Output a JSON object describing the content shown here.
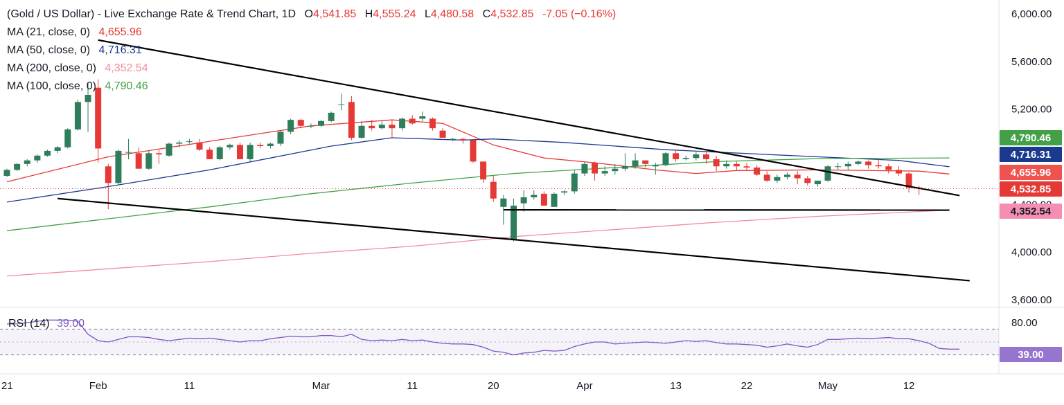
{
  "header": {
    "symbol": "(Gold / US Dollar) - Live Exchange Rate & Trend Chart, 1D",
    "ohlc": [
      {
        "k": "O",
        "v": "4,541.85"
      },
      {
        "k": "H",
        "v": "4,555.24"
      },
      {
        "k": "L",
        "v": "4,480.58"
      },
      {
        "k": "C",
        "v": "4,532.85"
      }
    ],
    "change": "-7.05 (−0.16%)"
  },
  "indicators": [
    {
      "label": "MA (21, close, 0)",
      "value": "4,655.96",
      "color": "#e53935"
    },
    {
      "label": "MA (50, close, 0)",
      "value": "4,716.31",
      "color": "#1a3a8f"
    },
    {
      "label": "MA (200, close, 0)",
      "value": "4,352.54",
      "color": "#f08c9c"
    },
    {
      "label": "MA (100, close, 0)",
      "value": "4,790.46",
      "color": "#43a047"
    }
  ],
  "rsi_label": {
    "name": "RSI (14)",
    "value": "39.00",
    "color": "#7e57c2"
  },
  "price_axis": {
    "ticks": [
      {
        "v": 6000,
        "label": "6,000.00"
      },
      {
        "v": 5600,
        "label": "5,600.00"
      },
      {
        "v": 5200,
        "label": "5,200.00"
      },
      {
        "v": 4000,
        "label": "4,000.00"
      },
      {
        "v": 3600,
        "label": "3,600.00"
      }
    ],
    "partial_label": {
      "v": 4400,
      "label": "4,400.00"
    },
    "tags": [
      {
        "v": 4790.46,
        "label": "4,790.46",
        "bg": "#43a047",
        "fg": "#ffffff"
      },
      {
        "v": 4716.31,
        "label": "4,716.31",
        "bg": "#1a3a8f",
        "fg": "#ffffff"
      },
      {
        "v": 4655.96,
        "label": "4,655.96",
        "bg": "#ef5350",
        "fg": "#ffffff"
      },
      {
        "v": 4532.85,
        "label": "4,532.85",
        "bg": "#e53935",
        "fg": "#ffffff"
      },
      {
        "v": 4352.54,
        "label": "4,352.54",
        "bg": "#f48fb1",
        "fg": "#131722"
      }
    ]
  },
  "rsi_axis": {
    "ticks": [
      {
        "v": 80,
        "label": "80.00"
      }
    ],
    "bands": [
      70,
      30
    ],
    "tag": {
      "v": 39.0,
      "label": "39.00",
      "bg": "#9575cd",
      "fg": "#ffffff"
    }
  },
  "x_axis": {
    "labels": [
      {
        "i": -1,
        "label": "21"
      },
      {
        "i": 9,
        "label": "Feb"
      },
      {
        "i": 18,
        "label": "11"
      },
      {
        "i": 31,
        "label": "Mar"
      },
      {
        "i": 40,
        "label": "11"
      },
      {
        "i": 48,
        "label": "20"
      },
      {
        "i": 57,
        "label": "Apr"
      },
      {
        "i": 66,
        "label": "13"
      },
      {
        "i": 73,
        "label": "22"
      },
      {
        "i": 81,
        "label": "May"
      },
      {
        "i": 89,
        "label": "12"
      }
    ]
  },
  "chart_data": {
    "type": "candlestick",
    "title": "(Gold / US Dollar) - Live Exchange Rate & Trend Chart",
    "timeframe": "1D",
    "ylim": [
      3540,
      6080
    ],
    "candles": [
      [
        4640,
        4700,
        4630,
        4690
      ],
      [
        4690,
        4750,
        4680,
        4740
      ],
      [
        4740,
        4780,
        4720,
        4770
      ],
      [
        4770,
        4820,
        4750,
        4810
      ],
      [
        4810,
        4860,
        4800,
        4850
      ],
      [
        4850,
        4890,
        4830,
        4880
      ],
      [
        4880,
        5040,
        4870,
        5030
      ],
      [
        5030,
        5280,
        5020,
        5260
      ],
      [
        5260,
        5420,
        5010,
        5320
      ],
      [
        5380,
        5450,
        4750,
        4870
      ],
      [
        4720,
        4740,
        4360,
        4580
      ],
      [
        4580,
        4860,
        4560,
        4850
      ],
      [
        4840,
        4950,
        4780,
        4840
      ],
      [
        4830,
        4880,
        4700,
        4700
      ],
      [
        4700,
        4850,
        4690,
        4830
      ],
      [
        4830,
        4860,
        4740,
        4820
      ],
      [
        4810,
        4920,
        4800,
        4910
      ],
      [
        4910,
        4940,
        4880,
        4920
      ],
      [
        4930,
        4950,
        4910,
        4930
      ],
      [
        4920,
        4950,
        4850,
        4860
      ],
      [
        4860,
        4880,
        4780,
        4780
      ],
      [
        4780,
        4890,
        4770,
        4880
      ],
      [
        4880,
        4910,
        4860,
        4900
      ],
      [
        4900,
        4920,
        4780,
        4780
      ],
      [
        4780,
        4920,
        4760,
        4900
      ],
      [
        4900,
        4920,
        4870,
        4890
      ],
      [
        4890,
        4920,
        4870,
        4910
      ],
      [
        4910,
        5020,
        4890,
        5010
      ],
      [
        5010,
        5120,
        4990,
        5110
      ],
      [
        5110,
        5120,
        5040,
        5060
      ],
      [
        5060,
        5080,
        5040,
        5060
      ],
      [
        5060,
        5110,
        5050,
        5100
      ],
      [
        5100,
        5180,
        5090,
        5170
      ],
      [
        5240,
        5330,
        5190,
        5240
      ],
      [
        5260,
        5310,
        4940,
        4960
      ],
      [
        4960,
        5100,
        4950,
        5060
      ],
      [
        5060,
        5110,
        5020,
        5040
      ],
      [
        5040,
        5100,
        5030,
        5070
      ],
      [
        5070,
        5110,
        4960,
        5040
      ],
      [
        5040,
        5130,
        5020,
        5120
      ],
      [
        5120,
        5150,
        5070,
        5080
      ],
      [
        5120,
        5180,
        5100,
        5140
      ],
      [
        5120,
        5130,
        5020,
        5040
      ],
      [
        5020,
        5040,
        4960,
        4960
      ],
      [
        4950,
        4960,
        4930,
        4950
      ],
      [
        4950,
        4960,
        4910,
        4940
      ],
      [
        4940,
        4950,
        4750,
        4760
      ],
      [
        4760,
        4760,
        4580,
        4610
      ],
      [
        4590,
        4640,
        4420,
        4450
      ],
      [
        4380,
        4480,
        4230,
        4450
      ],
      [
        4110,
        4450,
        4090,
        4390
      ],
      [
        4410,
        4520,
        4340,
        4460
      ],
      [
        4460,
        4520,
        4440,
        4480
      ],
      [
        4490,
        4510,
        4390,
        4390
      ],
      [
        4380,
        4500,
        4380,
        4490
      ],
      [
        4500,
        4520,
        4480,
        4510
      ],
      [
        4510,
        4690,
        4490,
        4660
      ],
      [
        4660,
        4760,
        4640,
        4740
      ],
      [
        4750,
        4760,
        4600,
        4660
      ],
      [
        4660,
        4720,
        4640,
        4680
      ],
      [
        4680,
        4740,
        4650,
        4700
      ],
      [
        4700,
        4830,
        4680,
        4720
      ],
      [
        4720,
        4830,
        4700,
        4770
      ],
      [
        4770,
        4770,
        4710,
        4740
      ],
      [
        4720,
        4750,
        4650,
        4730
      ],
      [
        4730,
        4840,
        4720,
        4830
      ],
      [
        4830,
        4860,
        4760,
        4780
      ],
      [
        4780,
        4810,
        4770,
        4790
      ],
      [
        4790,
        4840,
        4770,
        4820
      ],
      [
        4820,
        4850,
        4740,
        4780
      ],
      [
        4780,
        4810,
        4680,
        4720
      ],
      [
        4720,
        4770,
        4700,
        4740
      ],
      [
        4740,
        4760,
        4690,
        4720
      ],
      [
        4720,
        4750,
        4680,
        4710
      ],
      [
        4710,
        4730,
        4640,
        4650
      ],
      [
        4650,
        4680,
        4590,
        4600
      ],
      [
        4600,
        4650,
        4580,
        4630
      ],
      [
        4630,
        4670,
        4610,
        4650
      ],
      [
        4650,
        4680,
        4570,
        4620
      ],
      [
        4620,
        4640,
        4560,
        4580
      ],
      [
        4570,
        4600,
        4550,
        4600
      ],
      [
        4600,
        4730,
        4590,
        4720
      ],
      [
        4720,
        4750,
        4690,
        4720
      ],
      [
        4720,
        4760,
        4690,
        4740
      ],
      [
        4740,
        4770,
        4730,
        4760
      ],
      [
        4760,
        4770,
        4700,
        4730
      ],
      [
        4730,
        4780,
        4700,
        4720
      ],
      [
        4720,
        4740,
        4660,
        4690
      ],
      [
        4690,
        4720,
        4640,
        4660
      ],
      [
        4660,
        4670,
        4500,
        4540
      ],
      [
        4541.85,
        4555.24,
        4480.58,
        4532.85
      ]
    ],
    "moving_averages": [
      {
        "name": "MA (21, close, 0)",
        "value": 4655.96,
        "color": "#e53935",
        "points": [
          [
            0,
            4590
          ],
          [
            10,
            4800
          ],
          [
            20,
            4930
          ],
          [
            30,
            5060
          ],
          [
            38,
            5110
          ],
          [
            43,
            5080
          ],
          [
            48,
            4900
          ],
          [
            53,
            4790
          ],
          [
            58,
            4750
          ],
          [
            64,
            4690
          ],
          [
            68,
            4660
          ],
          [
            72,
            4685
          ],
          [
            80,
            4690
          ],
          [
            90,
            4680
          ],
          [
            93,
            4655.96
          ]
        ]
      },
      {
        "name": "MA (50, close, 0)",
        "value": 4716.31,
        "color": "#1a3a8f",
        "points": [
          [
            0,
            4420
          ],
          [
            10,
            4550
          ],
          [
            20,
            4690
          ],
          [
            32,
            4890
          ],
          [
            38,
            4960
          ],
          [
            45,
            4940
          ],
          [
            48,
            4950
          ],
          [
            55,
            4920
          ],
          [
            65,
            4860
          ],
          [
            75,
            4820
          ],
          [
            80,
            4800
          ],
          [
            88,
            4770
          ],
          [
            93,
            4716.31
          ]
        ]
      },
      {
        "name": "MA (100, close, 0)",
        "value": 4790.46,
        "color": "#43a047",
        "points": [
          [
            0,
            4180
          ],
          [
            10,
            4280
          ],
          [
            20,
            4380
          ],
          [
            30,
            4490
          ],
          [
            40,
            4580
          ],
          [
            50,
            4660
          ],
          [
            60,
            4710
          ],
          [
            70,
            4760
          ],
          [
            80,
            4785
          ],
          [
            93,
            4790.46
          ]
        ]
      },
      {
        "name": "MA (200, close, 0)",
        "value": 4352.54,
        "color": "#f08c9c",
        "points": [
          [
            0,
            3800
          ],
          [
            10,
            3860
          ],
          [
            20,
            3920
          ],
          [
            30,
            3990
          ],
          [
            40,
            4050
          ],
          [
            50,
            4130
          ],
          [
            60,
            4190
          ],
          [
            70,
            4250
          ],
          [
            80,
            4300
          ],
          [
            93,
            4352.54
          ]
        ]
      }
    ],
    "trendlines": [
      {
        "from": [
          9,
          5780
        ],
        "to": [
          94,
          4475
        ]
      },
      {
        "from": [
          5,
          4450
        ],
        "to": [
          95,
          3760
        ]
      },
      {
        "from": [
          49,
          4355
        ],
        "to": [
          93,
          4352.54
        ]
      }
    ],
    "last_close": 4532.85,
    "rsi": {
      "name": "RSI (14)",
      "period": 14,
      "last": 39.0,
      "ylim": [
        20,
        90
      ],
      "values": [
        78,
        78,
        80,
        82,
        84,
        84,
        84,
        82,
        62,
        52,
        50,
        54,
        58,
        58,
        57,
        54,
        52,
        54,
        56,
        55,
        56,
        54,
        52,
        50,
        52,
        52,
        55,
        57,
        59,
        58,
        58,
        60,
        60,
        58,
        62,
        54,
        52,
        53,
        52,
        54,
        52,
        53,
        50,
        48,
        47,
        47,
        46,
        42,
        36,
        34,
        30,
        33,
        34,
        37,
        36,
        37,
        43,
        47,
        50,
        50,
        47,
        48,
        49,
        50,
        49,
        48,
        50,
        52,
        51,
        52,
        49,
        47,
        47,
        46,
        45,
        42,
        44,
        47,
        44,
        42,
        46,
        54,
        54,
        55,
        56,
        55,
        56,
        57,
        55,
        55,
        52,
        48,
        40,
        39,
        39
      ]
    }
  }
}
